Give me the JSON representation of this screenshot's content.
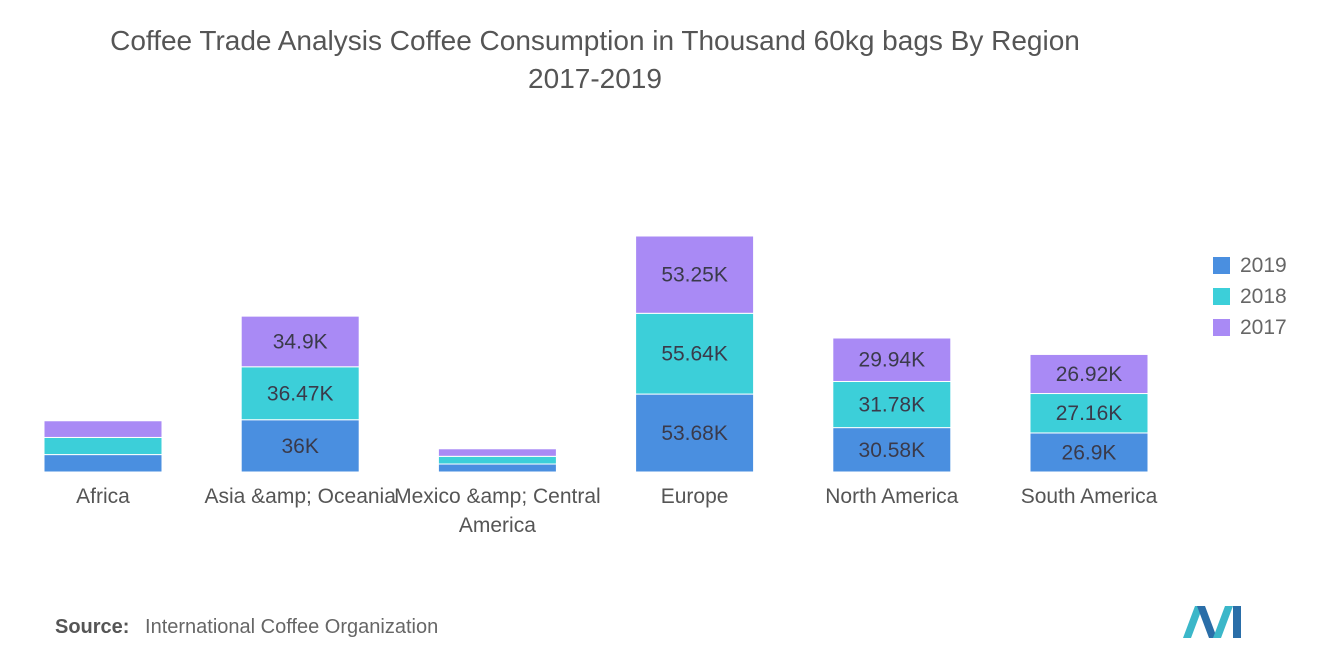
{
  "title_line1": "Coffee Trade Analysis Coffee Consumption in Thousand 60kg bags By Region",
  "title_line2": "2017-2019",
  "source_label": "Source:",
  "source_text": "International Coffee Organization",
  "chart_data": {
    "type": "bar",
    "stacked": true,
    "categories": [
      "Africa",
      "Asia &amp; Oceania",
      "Mexico &amp; Central America",
      "Europe",
      "North America",
      "South America"
    ],
    "category_lines": [
      [
        "Africa"
      ],
      [
        "Asia &amp; Oceania"
      ],
      [
        "Mexico &amp; Central",
        "America"
      ],
      [
        "Europe"
      ],
      [
        "North America"
      ],
      [
        "South America"
      ]
    ],
    "series": [
      {
        "name": "2019",
        "color": "#4a8fe0",
        "values": [
          12.0,
          36.0,
          5.5,
          53.68,
          30.58,
          26.9
        ],
        "labels": [
          "",
          "36K",
          "",
          "53.68K",
          "30.58K",
          "26.9K"
        ]
      },
      {
        "name": "2018",
        "color": "#3ccfd9",
        "values": [
          11.8,
          36.47,
          5.3,
          55.64,
          31.78,
          27.16
        ],
        "labels": [
          "",
          "36.47K",
          "",
          "55.64K",
          "31.78K",
          "27.16K"
        ]
      },
      {
        "name": "2017",
        "color": "#a98af5",
        "values": [
          11.5,
          34.9,
          5.2,
          53.25,
          29.94,
          26.92
        ],
        "labels": [
          "",
          "34.9K",
          "",
          "53.25K",
          "29.94K",
          "26.92K"
        ]
      }
    ],
    "legend_order": [
      "2019",
      "2018",
      "2017"
    ],
    "legend_position": "right",
    "ylim": [
      0,
      162.57
    ],
    "grid": false
  }
}
